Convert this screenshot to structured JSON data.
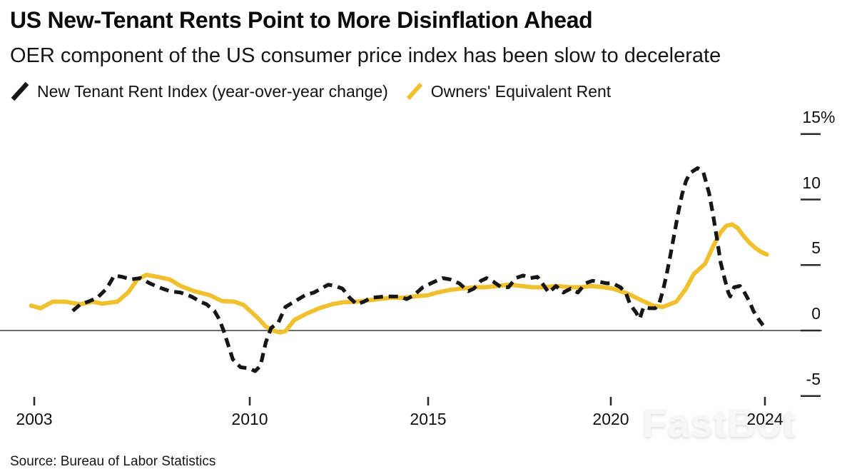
{
  "watermark": {
    "text": "FastBot"
  },
  "chart_data": {
    "type": "line",
    "title": "US New-Tenant Rents Point to More Disinflation Ahead",
    "subtitle": "OER component of the US consumer price index has been slow to decelerate",
    "source": "Source: Bureau of Labor Statistics",
    "legend_position": "top",
    "grid": false,
    "colors": {
      "new_tenant": "#161616",
      "oer": "#F0C02E",
      "axis_line": "#6e6e6e",
      "tick": "#2b2b2b"
    },
    "x_axis": {
      "ticks": [
        {
          "year": 2003,
          "label": "2003"
        },
        {
          "year": 2010,
          "label": "2010"
        },
        {
          "year": 2015,
          "label": "2015"
        },
        {
          "year": 2020,
          "label": "2020"
        },
        {
          "year": 2024,
          "label": "2024"
        }
      ]
    },
    "y_axis": {
      "unit": "%",
      "baseline": 0,
      "range": [
        -6.5,
        16.5
      ],
      "ticks": [
        {
          "value": 15,
          "label": "15",
          "suffix": "%"
        },
        {
          "value": 10,
          "label": "10",
          "suffix": ""
        },
        {
          "value": 5,
          "label": "5",
          "suffix": ""
        },
        {
          "value": 0,
          "label": "0",
          "suffix": ""
        },
        {
          "value": -5,
          "label": "-5",
          "suffix": ""
        }
      ]
    },
    "series": [
      {
        "name": "Owners' Equivalent Rent",
        "slug": "oer-line",
        "color": "#F0C02E",
        "line_style": "solid",
        "points": [
          [
            2002.9,
            1.9
          ],
          [
            2003.2,
            1.7
          ],
          [
            2003.6,
            2.2
          ],
          [
            2004.0,
            2.2
          ],
          [
            2004.5,
            2.0
          ],
          [
            2004.9,
            2.2
          ],
          [
            2005.2,
            2.05
          ],
          [
            2005.7,
            2.2
          ],
          [
            2006.05,
            2.9
          ],
          [
            2006.35,
            3.9
          ],
          [
            2006.65,
            4.25
          ],
          [
            2007.0,
            4.1
          ],
          [
            2007.4,
            3.9
          ],
          [
            2007.75,
            3.4
          ],
          [
            2008.2,
            3.0
          ],
          [
            2008.7,
            2.7
          ],
          [
            2009.1,
            2.25
          ],
          [
            2009.5,
            2.2
          ],
          [
            2009.8,
            1.95
          ],
          [
            2010.05,
            1.4
          ],
          [
            2010.25,
            0.9
          ],
          [
            2010.45,
            0.3
          ],
          [
            2010.65,
            0.0
          ],
          [
            2010.85,
            -0.15
          ],
          [
            2011.0,
            -0.05
          ],
          [
            2011.25,
            0.8
          ],
          [
            2011.6,
            1.3
          ],
          [
            2011.95,
            1.7
          ],
          [
            2012.3,
            2.0
          ],
          [
            2012.6,
            2.15
          ],
          [
            2013.0,
            2.2
          ],
          [
            2013.3,
            2.3
          ],
          [
            2013.6,
            2.4
          ],
          [
            2013.95,
            2.5
          ],
          [
            2014.3,
            2.5
          ],
          [
            2014.6,
            2.6
          ],
          [
            2015.0,
            2.7
          ],
          [
            2015.25,
            2.9
          ],
          [
            2015.6,
            3.1
          ],
          [
            2015.9,
            3.2
          ],
          [
            2016.3,
            3.3
          ],
          [
            2016.55,
            3.3
          ],
          [
            2016.9,
            3.4
          ],
          [
            2017.2,
            3.5
          ],
          [
            2017.55,
            3.4
          ],
          [
            2017.85,
            3.3
          ],
          [
            2018.15,
            3.3
          ],
          [
            2018.5,
            3.4
          ],
          [
            2018.9,
            3.3
          ],
          [
            2019.2,
            3.3
          ],
          [
            2019.45,
            3.4
          ],
          [
            2019.8,
            3.3
          ],
          [
            2020.05,
            3.2
          ],
          [
            2020.45,
            2.8
          ],
          [
            2020.8,
            2.3
          ],
          [
            2021.1,
            1.9
          ],
          [
            2021.35,
            1.8
          ],
          [
            2021.7,
            2.2
          ],
          [
            2021.95,
            3.2
          ],
          [
            2022.15,
            4.3
          ],
          [
            2022.45,
            5.1
          ],
          [
            2022.65,
            6.4
          ],
          [
            2022.85,
            7.5
          ],
          [
            2023.0,
            8.0
          ],
          [
            2023.15,
            8.1
          ],
          [
            2023.3,
            7.8
          ],
          [
            2023.45,
            7.2
          ],
          [
            2023.6,
            6.7
          ],
          [
            2023.75,
            6.3
          ],
          [
            2023.9,
            6.0
          ],
          [
            2024.05,
            5.8
          ]
        ]
      },
      {
        "name": "New Tenant Rent Index (year-over-year change)",
        "slug": "new-tenant-rent-line",
        "color": "#161616",
        "line_style": "dashed",
        "points": [
          [
            2004.25,
            1.5
          ],
          [
            2004.5,
            2.0
          ],
          [
            2004.75,
            2.2
          ],
          [
            2005.05,
            2.5
          ],
          [
            2005.35,
            3.2
          ],
          [
            2005.6,
            4.2
          ],
          [
            2005.85,
            4.1
          ],
          [
            2006.15,
            3.9
          ],
          [
            2006.45,
            4.0
          ],
          [
            2006.75,
            3.6
          ],
          [
            2007.05,
            3.3
          ],
          [
            2007.4,
            3.0
          ],
          [
            2007.75,
            2.9
          ],
          [
            2008.1,
            2.6
          ],
          [
            2008.4,
            2.2
          ],
          [
            2008.6,
            2.0
          ],
          [
            2008.85,
            1.5
          ],
          [
            2009.0,
            0.9
          ],
          [
            2009.15,
            0.0
          ],
          [
            2009.3,
            -1.1
          ],
          [
            2009.45,
            -2.2
          ],
          [
            2009.7,
            -2.8
          ],
          [
            2010.0,
            -2.9
          ],
          [
            2010.15,
            -3.1
          ],
          [
            2010.3,
            -2.7
          ],
          [
            2010.45,
            -0.9
          ],
          [
            2010.6,
            0.2
          ],
          [
            2010.8,
            0.6
          ],
          [
            2011.0,
            1.8
          ],
          [
            2011.25,
            2.2
          ],
          [
            2011.55,
            2.7
          ],
          [
            2011.8,
            2.9
          ],
          [
            2012.2,
            3.5
          ],
          [
            2012.4,
            3.4
          ],
          [
            2012.6,
            3.2
          ],
          [
            2012.8,
            2.5
          ],
          [
            2013.0,
            2.0
          ],
          [
            2013.2,
            2.2
          ],
          [
            2013.4,
            2.5
          ],
          [
            2013.8,
            2.6
          ],
          [
            2014.2,
            2.6
          ],
          [
            2014.4,
            2.4
          ],
          [
            2014.6,
            2.7
          ],
          [
            2014.85,
            3.3
          ],
          [
            2015.15,
            3.7
          ],
          [
            2015.4,
            4.0
          ],
          [
            2015.6,
            3.9
          ],
          [
            2015.85,
            3.6
          ],
          [
            2016.1,
            3.0
          ],
          [
            2016.25,
            3.2
          ],
          [
            2016.45,
            3.8
          ],
          [
            2016.6,
            4.0
          ],
          [
            2016.8,
            3.7
          ],
          [
            2017.0,
            3.3
          ],
          [
            2017.2,
            3.3
          ],
          [
            2017.4,
            4.0
          ],
          [
            2017.6,
            4.2
          ],
          [
            2017.8,
            4.0
          ],
          [
            2017.99,
            4.1
          ],
          [
            2018.15,
            3.5
          ],
          [
            2018.3,
            2.9
          ],
          [
            2018.5,
            3.4
          ],
          [
            2018.7,
            2.9
          ],
          [
            2018.9,
            3.2
          ],
          [
            2019.1,
            2.9
          ],
          [
            2019.3,
            3.6
          ],
          [
            2019.5,
            3.8
          ],
          [
            2019.7,
            3.7
          ],
          [
            2019.9,
            3.6
          ],
          [
            2020.05,
            3.6
          ],
          [
            2020.25,
            3.3
          ],
          [
            2020.4,
            2.8
          ],
          [
            2020.5,
            2.0
          ],
          [
            2020.65,
            1.4
          ],
          [
            2020.75,
            0.9
          ],
          [
            2020.85,
            1.8
          ],
          [
            2021.0,
            1.7
          ],
          [
            2021.15,
            1.7
          ],
          [
            2021.25,
            2.0
          ],
          [
            2021.35,
            3.0
          ],
          [
            2021.45,
            4.3
          ],
          [
            2021.55,
            5.8
          ],
          [
            2021.65,
            7.4
          ],
          [
            2021.75,
            9.0
          ],
          [
            2021.85,
            10.4
          ],
          [
            2021.95,
            11.4
          ],
          [
            2022.05,
            12.0
          ],
          [
            2022.25,
            12.4
          ],
          [
            2022.4,
            12.1
          ],
          [
            2022.55,
            10.5
          ],
          [
            2022.65,
            8.9
          ],
          [
            2022.75,
            7.1
          ],
          [
            2022.85,
            5.2
          ],
          [
            2022.95,
            4.0
          ],
          [
            2023.05,
            2.9
          ],
          [
            2023.1,
            2.6
          ],
          [
            2023.2,
            3.3
          ],
          [
            2023.35,
            3.4
          ],
          [
            2023.45,
            3.0
          ],
          [
            2023.6,
            2.2
          ],
          [
            2023.7,
            1.5
          ],
          [
            2023.85,
            0.8
          ],
          [
            2023.95,
            0.4
          ]
        ]
      }
    ]
  }
}
